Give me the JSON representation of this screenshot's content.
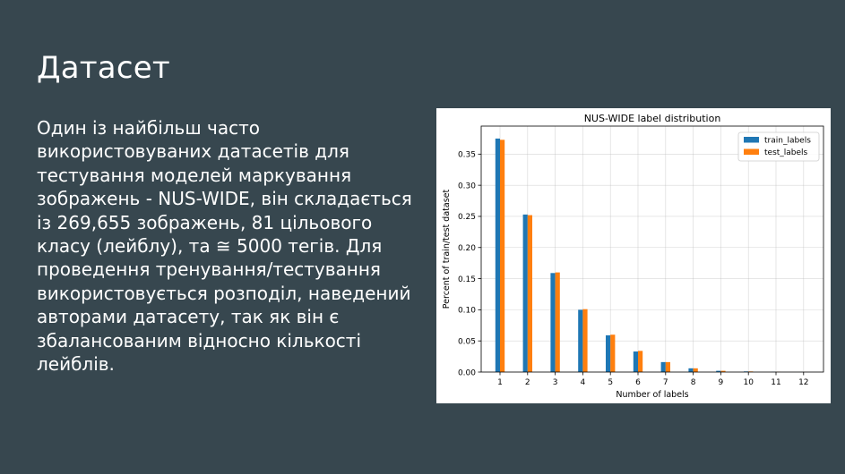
{
  "slide": {
    "title": "Датасет",
    "body": "Один із найбільш часто використовуваних датасетів для тестування моделей маркування зображень - NUS-WIDE, він складається із 269,655 зображень, 81 цільового класу (лейблу), та ≅ 5000 тегів. Для проведення тренування/тестування використовується розподіл, наведений авторами датасету, так як він є збалансованим відносно кількості лейблів."
  },
  "colors": {
    "background": "#37474f",
    "train": "#1f77b4",
    "test": "#ff7f0e"
  },
  "chart_data": {
    "type": "bar",
    "title": "NUS-WIDE label distribution",
    "xlabel": "Number of labels",
    "ylabel": "Percent of train/test dataset",
    "categories": [
      "1",
      "2",
      "3",
      "4",
      "5",
      "6",
      "7",
      "8",
      "9",
      "10",
      "11",
      "12"
    ],
    "series": [
      {
        "name": "train_labels",
        "values": [
          0.375,
          0.253,
          0.159,
          0.1,
          0.059,
          0.033,
          0.016,
          0.006,
          0.002,
          0.001,
          0.0003,
          0.0001
        ]
      },
      {
        "name": "test_labels",
        "values": [
          0.373,
          0.252,
          0.16,
          0.101,
          0.06,
          0.034,
          0.016,
          0.006,
          0.002,
          0.001,
          0.0003,
          0.0001
        ]
      }
    ],
    "yticks": [
      "0.00",
      "0.05",
      "0.10",
      "0.15",
      "0.20",
      "0.25",
      "0.30",
      "0.35"
    ],
    "ylim": [
      0,
      0.395
    ],
    "grid": true,
    "legend": "top-right"
  }
}
